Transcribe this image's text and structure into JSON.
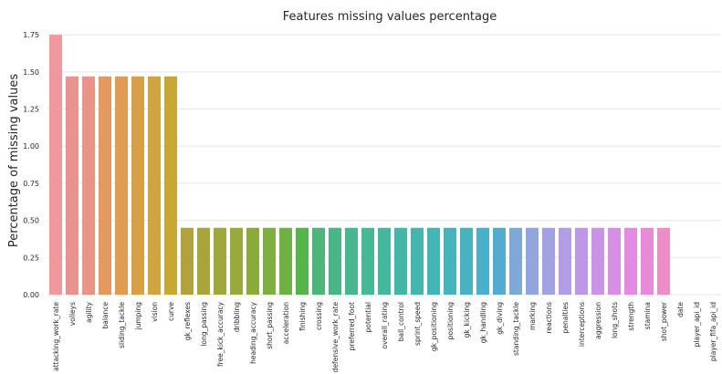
{
  "chart_data": {
    "type": "bar",
    "title": "Features missing values percentage",
    "xlabel": "",
    "ylabel": "Percentage of missing values",
    "ylim": [
      0,
      1.8
    ],
    "yticks": [
      "0.00",
      "0.25",
      "0.50",
      "0.75",
      "1.00",
      "1.25",
      "1.50",
      "1.75"
    ],
    "grid": "horizontal",
    "categories": [
      "attacking_work_rate",
      "volleys",
      "agility",
      "balance",
      "sliding_tackle",
      "jumping",
      "vision",
      "curve",
      "gk_reflexes",
      "long_passing",
      "free_kick_accuracy",
      "dribbling",
      "heading_accuracy",
      "short_passing",
      "acceleration",
      "finishing",
      "crossing",
      "defensive_work_rate",
      "preferred_foot",
      "potential",
      "overall_rating",
      "ball_control",
      "sprint_speed",
      "gk_positioning",
      "positioning",
      "gk_kicking",
      "gk_handling",
      "gk_diving",
      "standing_tackle",
      "marking",
      "reactions",
      "penalties",
      "interceptions",
      "aggression",
      "long_shots",
      "strength",
      "stamina",
      "shot_power",
      "date",
      "player_api_id",
      "player_fifa_api_id"
    ],
    "values": [
      1.75,
      1.47,
      1.47,
      1.47,
      1.47,
      1.47,
      1.47,
      1.47,
      0.45,
      0.45,
      0.45,
      0.45,
      0.45,
      0.45,
      0.45,
      0.45,
      0.45,
      0.45,
      0.45,
      0.45,
      0.45,
      0.45,
      0.45,
      0.45,
      0.45,
      0.45,
      0.45,
      0.45,
      0.45,
      0.45,
      0.45,
      0.45,
      0.45,
      0.45,
      0.45,
      0.45,
      0.45,
      0.45,
      0,
      0,
      0
    ],
    "colors": [
      "#f0989e",
      "#ea9290",
      "#e99486",
      "#e49a5e",
      "#e09c52",
      "#d7a047",
      "#d0a43e",
      "#c9a734",
      "#b3a23c",
      "#a8a63a",
      "#9fa83a",
      "#97aa3a",
      "#8aab3c",
      "#7faf40",
      "#6fb244",
      "#55b44a",
      "#4eb57a",
      "#4ab685",
      "#48b68e",
      "#46b797",
      "#45b79f",
      "#44b6a7",
      "#45b5ae",
      "#45b4b5",
      "#47b3bb",
      "#49b2c1",
      "#4bafc7",
      "#53acd0",
      "#7ea9d6",
      "#92a6dd",
      "#a2a2e3",
      "#b29ee6",
      "#bd98e7",
      "#c994e8",
      "#d78fe6",
      "#e28be2",
      "#e98ad8",
      "#ec8dc7",
      "#ec91b8",
      "#ec95a8",
      "#ec98a0"
    ]
  }
}
